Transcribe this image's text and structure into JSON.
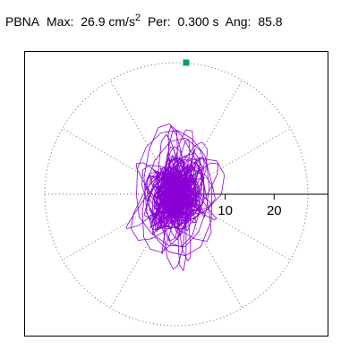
{
  "header": {
    "station": "PBNA",
    "max_label": "Max:",
    "max_value": "26.9 cm/s",
    "max_exponent": "2",
    "per_label": "Per:",
    "per_value": "0.300 s",
    "ang_label": "Ang:",
    "ang_value": "85.8"
  },
  "chart_data": {
    "type": "scatter",
    "title": "PBNA  Max: 26.9 cm/s2  Per: 0.300 s  Ang: 85.8",
    "description_kind": "polar particle-motion orbit",
    "max_amplitude": 26.9,
    "period_s": 0.3,
    "angle_deg": 85.8,
    "radial_axis": {
      "ticks": [
        10,
        20
      ],
      "tick_labels": [
        "10",
        "20"
      ],
      "range": [
        0,
        26.9
      ]
    },
    "grid": {
      "circles": [
        10,
        20
      ],
      "spokes_deg": [
        30,
        60,
        120,
        150,
        210,
        240,
        300,
        330
      ],
      "style": "dotted"
    },
    "peak_marker": {
      "r": 26.9,
      "angle_deg": 90
    },
    "colors": {
      "trace": "#8a00d4",
      "marker": "#00a36c",
      "grid": "#666666",
      "frame": "#000000"
    },
    "trace_model": {
      "seed": 7,
      "steps": 2200,
      "major_axis_deg": 92,
      "spread_major": 9.5,
      "spread_minor": 5.8
    }
  }
}
